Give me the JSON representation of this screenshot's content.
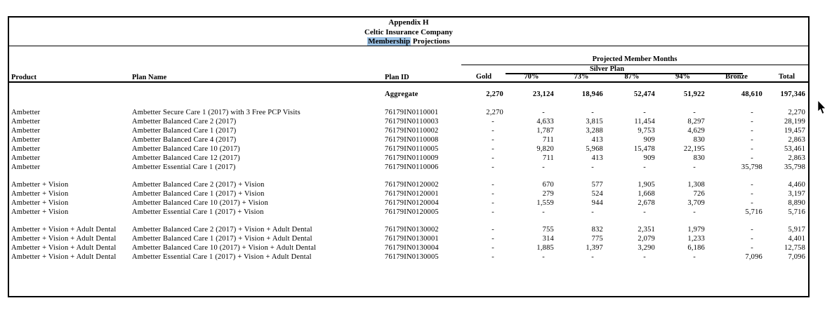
{
  "document": {
    "title_line1": "Appendix H",
    "title_line2": "Celtic Insurance Company",
    "title_line3_highlight": "Membership",
    "title_line3_rest": " Projections",
    "highlight_color": "#9dc3e6"
  },
  "table": {
    "projected_header": "Projected Member Months",
    "silver_header": "Silver Plan",
    "columns": [
      "Product",
      "Plan Name",
      "Plan ID",
      "Gold",
      "70%",
      "73%",
      "87%",
      "94%",
      "Bronze",
      "Total"
    ],
    "aggregate": {
      "label": "Aggregate",
      "values": [
        "2,270",
        "23,124",
        "18,946",
        "52,474",
        "51,922",
        "48,610",
        "197,346"
      ]
    },
    "groups": [
      {
        "rows": [
          {
            "product": "Ambetter",
            "plan_name": "Ambetter Secure Care 1 (2017) with 3 Free PCP Visits",
            "plan_id": "76179IN0110001",
            "gold": "2,270",
            "s70": "-",
            "s73": "-",
            "s87": "-",
            "s94": "-",
            "bronze": "-",
            "total": "2,270"
          },
          {
            "product": "Ambetter",
            "plan_name": "Ambetter Balanced Care 2 (2017)",
            "plan_id": "76179IN0110003",
            "gold": "-",
            "s70": "4,633",
            "s73": "3,815",
            "s87": "11,454",
            "s94": "8,297",
            "bronze": "-",
            "total": "28,199"
          },
          {
            "product": "Ambetter",
            "plan_name": "Ambetter Balanced Care 1 (2017)",
            "plan_id": "76179IN0110002",
            "gold": "-",
            "s70": "1,787",
            "s73": "3,288",
            "s87": "9,753",
            "s94": "4,629",
            "bronze": "-",
            "total": "19,457"
          },
          {
            "product": "Ambetter",
            "plan_name": "Ambetter Balanced Care 4 (2017)",
            "plan_id": "76179IN0110008",
            "gold": "-",
            "s70": "711",
            "s73": "413",
            "s87": "909",
            "s94": "830",
            "bronze": "-",
            "total": "2,863"
          },
          {
            "product": "Ambetter",
            "plan_name": "Ambetter Balanced Care 10 (2017)",
            "plan_id": "76179IN0110005",
            "gold": "-",
            "s70": "9,820",
            "s73": "5,968",
            "s87": "15,478",
            "s94": "22,195",
            "bronze": "-",
            "total": "53,461"
          },
          {
            "product": "Ambetter",
            "plan_name": "Ambetter Balanced Care 12 (2017)",
            "plan_id": "76179IN0110009",
            "gold": "-",
            "s70": "711",
            "s73": "413",
            "s87": "909",
            "s94": "830",
            "bronze": "-",
            "total": "2,863"
          },
          {
            "product": "Ambetter",
            "plan_name": "Ambetter Essential Care 1 (2017)",
            "plan_id": "76179IN0110006",
            "gold": "-",
            "s70": "-",
            "s73": "-",
            "s87": "-",
            "s94": "-",
            "bronze": "35,798",
            "total": "35,798"
          }
        ]
      },
      {
        "rows": [
          {
            "product": "Ambetter + Vision",
            "plan_name": "Ambetter Balanced Care 2 (2017) + Vision",
            "plan_id": "76179IN0120002",
            "gold": "-",
            "s70": "670",
            "s73": "577",
            "s87": "1,905",
            "s94": "1,308",
            "bronze": "-",
            "total": "4,460"
          },
          {
            "product": "Ambetter + Vision",
            "plan_name": "Ambetter Balanced Care 1 (2017) + Vision",
            "plan_id": "76179IN0120001",
            "gold": "-",
            "s70": "279",
            "s73": "524",
            "s87": "1,668",
            "s94": "726",
            "bronze": "-",
            "total": "3,197"
          },
          {
            "product": "Ambetter + Vision",
            "plan_name": "Ambetter Balanced Care 10 (2017) + Vision",
            "plan_id": "76179IN0120004",
            "gold": "-",
            "s70": "1,559",
            "s73": "944",
            "s87": "2,678",
            "s94": "3,709",
            "bronze": "-",
            "total": "8,890"
          },
          {
            "product": "Ambetter + Vision",
            "plan_name": "Ambetter Essential Care 1 (2017) + Vision",
            "plan_id": "76179IN0120005",
            "gold": "-",
            "s70": "-",
            "s73": "-",
            "s87": "-",
            "s94": "-",
            "bronze": "5,716",
            "total": "5,716"
          }
        ]
      },
      {
        "rows": [
          {
            "product": "Ambetter + Vision + Adult Dental",
            "plan_name": "Ambetter Balanced Care 2 (2017) + Vision + Adult Dental",
            "plan_id": "76179IN0130002",
            "gold": "-",
            "s70": "755",
            "s73": "832",
            "s87": "2,351",
            "s94": "1,979",
            "bronze": "-",
            "total": "5,917"
          },
          {
            "product": "Ambetter + Vision + Adult Dental",
            "plan_name": "Ambetter Balanced Care 1 (2017) + Vision + Adult Dental",
            "plan_id": "76179IN0130001",
            "gold": "-",
            "s70": "314",
            "s73": "775",
            "s87": "2,079",
            "s94": "1,233",
            "bronze": "-",
            "total": "4,401"
          },
          {
            "product": "Ambetter + Vision + Adult Dental",
            "plan_name": "Ambetter Balanced Care 10 (2017) + Vision + Adult Dental",
            "plan_id": "76179IN0130004",
            "gold": "-",
            "s70": "1,885",
            "s73": "1,397",
            "s87": "3,290",
            "s94": "6,186",
            "bronze": "-",
            "total": "12,758"
          },
          {
            "product": "Ambetter + Vision + Adult Dental",
            "plan_name": "Ambetter Essential Care 1 (2017) + Vision + Adult Dental",
            "plan_id": "76179IN0130005",
            "gold": "-",
            "s70": "-",
            "s73": "-",
            "s87": "-",
            "s94": "-",
            "bronze": "7,096",
            "total": "7,096"
          }
        ]
      }
    ]
  },
  "icons": {
    "cursor": "arrow-pointer"
  }
}
